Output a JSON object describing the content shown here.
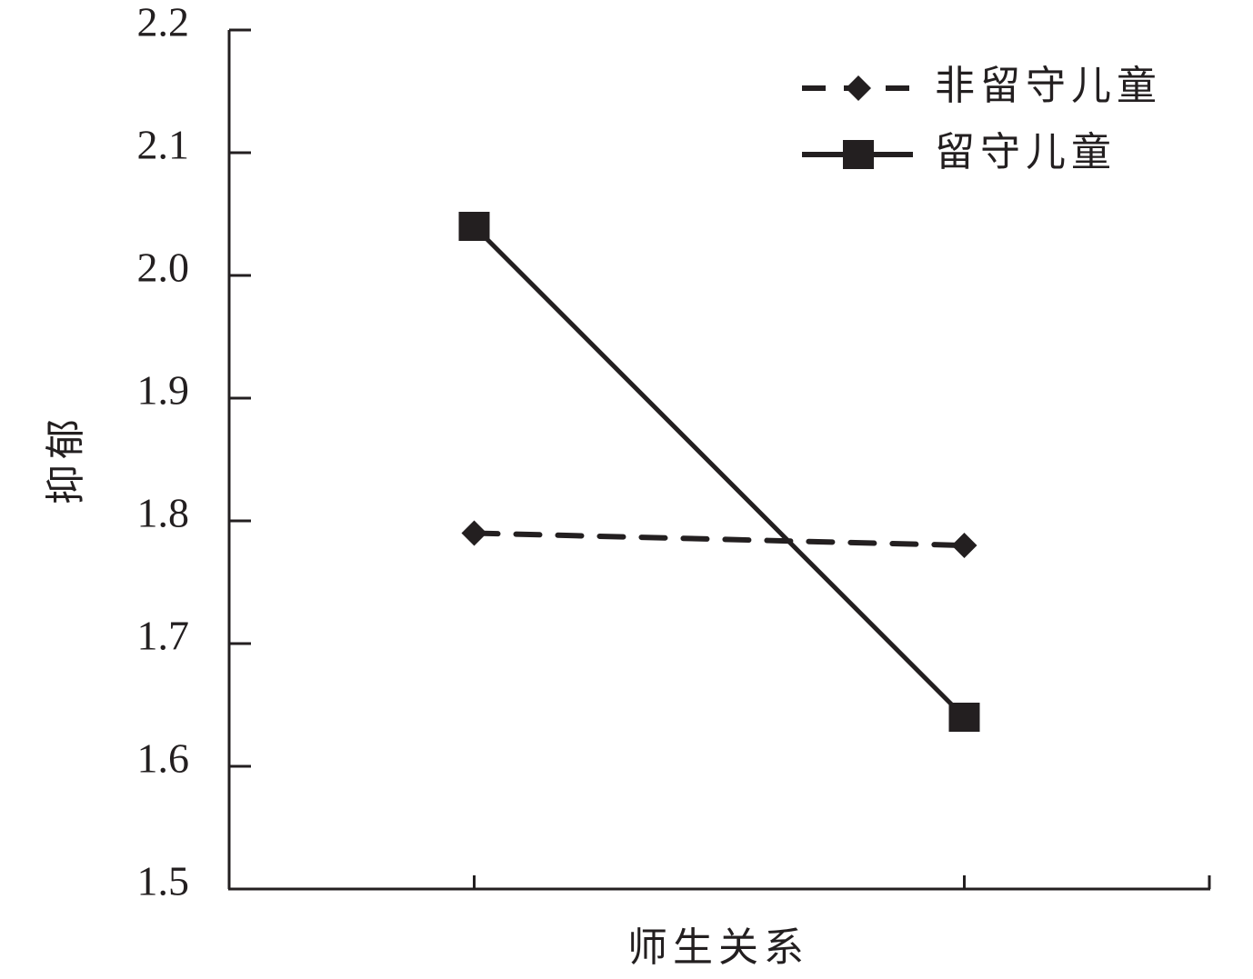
{
  "chart_data": {
    "type": "line",
    "x_label": "师生关系",
    "y_label": "抑郁",
    "categories": [
      null,
      null
    ],
    "series": [
      {
        "name": "非留守儿童",
        "color": "#231f20",
        "line_style": "dashed",
        "marker": "diamond",
        "values": [
          1.79,
          1.78
        ]
      },
      {
        "name": "留守儿童",
        "color": "#231f20",
        "line_style": "solid",
        "marker": "square",
        "values": [
          2.04,
          1.64
        ]
      }
    ],
    "ylim": [
      1.5,
      2.2
    ],
    "yticks": [
      1.5,
      1.6,
      1.7,
      1.8,
      1.9,
      {
        "value": 2,
        "label": "2.0"
      },
      2.1,
      2.2
    ],
    "legend": "upper right"
  }
}
